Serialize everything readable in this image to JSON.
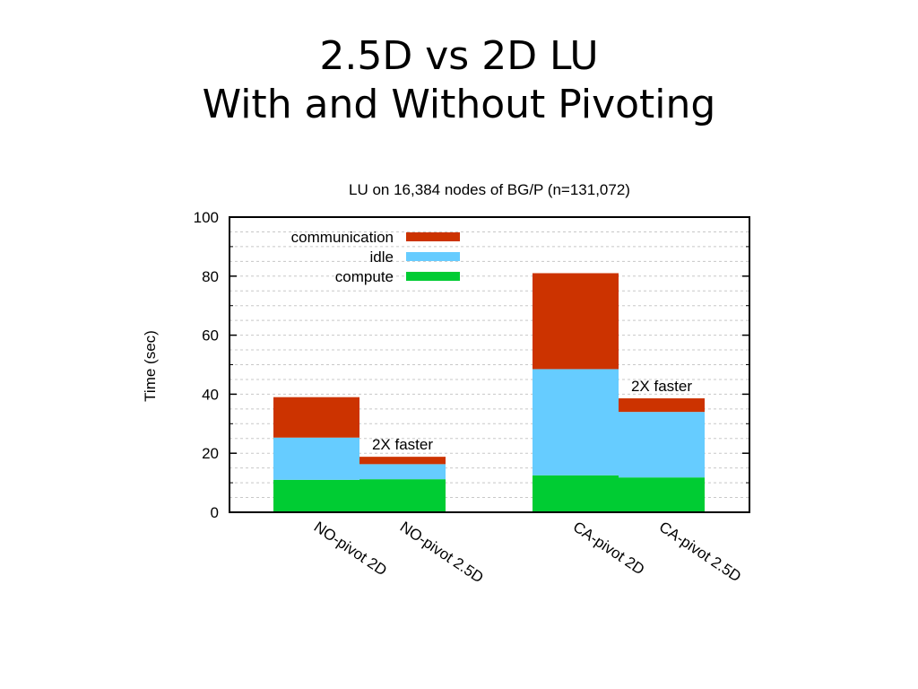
{
  "slide": {
    "title_line1": "2.5D vs 2D LU",
    "title_line2": "With and Without Pivoting"
  },
  "chart_data": {
    "type": "bar",
    "stacked": true,
    "title": "LU on 16,384 nodes of BG/P (n=131,072)",
    "xlabel": "",
    "ylabel": "Time (sec)",
    "ylim": [
      0,
      100
    ],
    "yticks": [
      0,
      20,
      40,
      60,
      80,
      100
    ],
    "grid": true,
    "legend_position": "top-left",
    "categories": [
      "NO-pivot 2D",
      "NO-pivot 2.5D",
      "CA-pivot 2D",
      "CA-pivot 2.5D"
    ],
    "series": [
      {
        "name": "compute",
        "color": "#00cc33",
        "values": [
          11,
          11.2,
          12.5,
          11.8
        ]
      },
      {
        "name": "idle",
        "color": "#66ccff",
        "values": [
          14.3,
          5.1,
          36,
          22.2
        ]
      },
      {
        "name": "communication",
        "color": "#cc3300",
        "values": [
          13.7,
          2.5,
          32.5,
          4.6
        ]
      }
    ],
    "legend_order": [
      "communication",
      "idle",
      "compute"
    ],
    "annotations": [
      {
        "text": "2X faster",
        "category_index": 1
      },
      {
        "text": "2X faster",
        "category_index": 3
      }
    ]
  }
}
